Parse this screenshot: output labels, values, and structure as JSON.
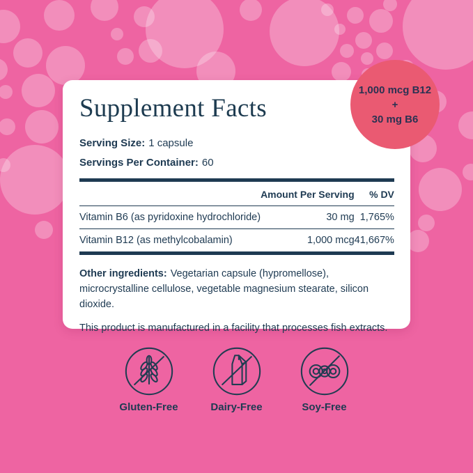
{
  "badge": {
    "line1": "1,000 mcg B12",
    "line2": "+",
    "line3": "30 mg B6"
  },
  "panel": {
    "title": "Supplement Facts",
    "serving_size_label": "Serving Size:",
    "serving_size_value": "1 capsule",
    "servings_label": "Servings Per Container:",
    "servings_value": "60",
    "table": {
      "headers": {
        "amount": "Amount Per Serving",
        "dv": "% DV"
      },
      "rows": [
        {
          "name": "Vitamin B6 (as pyridoxine hydrochloride)",
          "amount": "30 mg",
          "dv": "1,765%"
        },
        {
          "name": "Vitamin B12 (as methylcobalamin)",
          "amount": "1,000 mcg",
          "dv": "41,667%"
        }
      ]
    },
    "other_ingredients_label": "Other ingredients:",
    "other_ingredients_text": "Vegetarian capsule (hypromellose), microcrystalline cellulose, vegetable magnesium stearate, silicon dioxide.",
    "facility_note": "This product is manufactured in a facility that processes fish extracts."
  },
  "certifications": [
    {
      "icon": "gluten-free-icon",
      "label": "Gluten-Free"
    },
    {
      "icon": "dairy-free-icon",
      "label": "Dairy-Free"
    },
    {
      "icon": "soy-free-icon",
      "label": "Soy-Free"
    }
  ],
  "colors": {
    "background_pink": "#ee64a2",
    "bubble_pink": "#f28ab9",
    "badge_coral": "#ea5a72",
    "text_navy": "#1e3a52",
    "card_white": "#ffffff"
  }
}
